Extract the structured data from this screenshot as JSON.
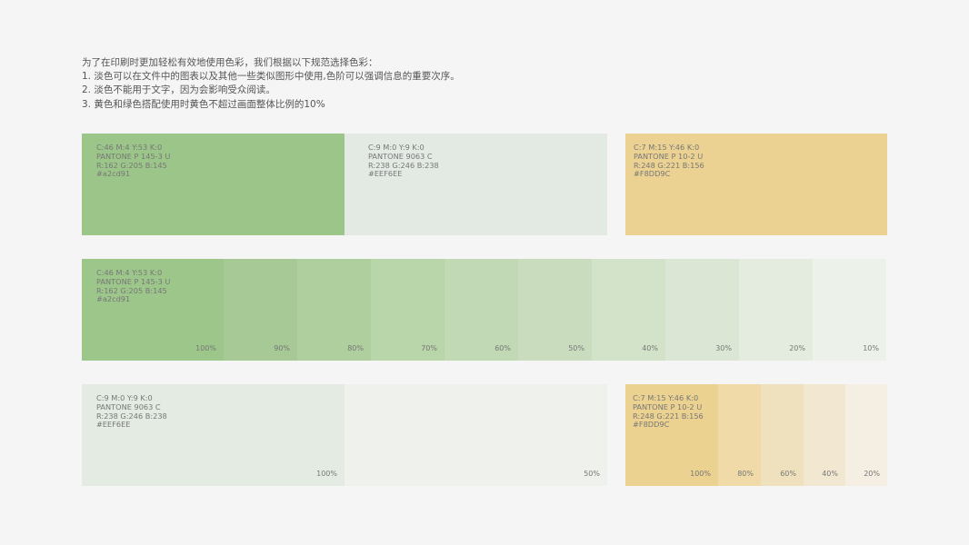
{
  "intro": {
    "line1": "为了在印刷时更加轻松有效地使用色彩，我们根据以下规范选择色彩：",
    "line2": "1. 淡色可以在文件中的图表以及其他一些类似图形中使用,色阶可以强调信息的重要次序。",
    "line3": "2. 淡色不能用于文字，因为会影响受众阅读。",
    "line4": "3. 黄色和绿色搭配使用时黄色不超过画面整体比例的10%"
  },
  "green": {
    "color": "#a2cd91",
    "cmyk": "C:46  M:4  Y:53  K:0",
    "pantone": "PANTONE  P 145-3 U",
    "rgb": "R:162  G:205  B:145",
    "hex": "#a2cd91"
  },
  "light": {
    "color": "#EEF6EE",
    "cmyk": "C:9  M:0  Y:9  K:0",
    "pantone": "PANTONE 9063 C",
    "rgb": "R:238  G:246  B:238",
    "hex": "#EEF6EE"
  },
  "yellow": {
    "color": "#F8DD9C",
    "cmyk": "C:7  M:15  Y:46  K:0",
    "pantone": "PANTONE  P 10-2 U",
    "rgb": "R:248  G:221  B:156",
    "hex": "#F8DD9C"
  },
  "green_scale": [
    {
      "label": "100%",
      "color": "#9dc68b"
    },
    {
      "label": "90%",
      "color": "#a6c995"
    },
    {
      "label": "80%",
      "color": "#afcf9f"
    },
    {
      "label": "70%",
      "color": "#b9d5aa"
    },
    {
      "label": "60%",
      "color": "#c1d9b4"
    },
    {
      "label": "50%",
      "color": "#c9ddbe"
    },
    {
      "label": "40%",
      "color": "#d2e3c9"
    },
    {
      "label": "30%",
      "color": "#dbe7d4"
    },
    {
      "label": "20%",
      "color": "#e3ecde"
    },
    {
      "label": "10%",
      "color": "#ecf1e9"
    }
  ],
  "light_scale": [
    {
      "label": "100%",
      "color": "#e3ebe3"
    },
    {
      "label": "50%",
      "color": "#eef1ec"
    }
  ],
  "yellow_scale": [
    {
      "label": "100%",
      "color": "#ecd291"
    },
    {
      "label": "80%",
      "color": "#efdaa8"
    },
    {
      "label": "60%",
      "color": "#f0e1be"
    },
    {
      "label": "40%",
      "color": "#f2e8d1"
    },
    {
      "label": "20%",
      "color": "#f5eee2"
    }
  ],
  "display": {
    "green_big": "#9cc589",
    "light_big": "#e3eae4",
    "yellow_big": "#ecd292"
  }
}
